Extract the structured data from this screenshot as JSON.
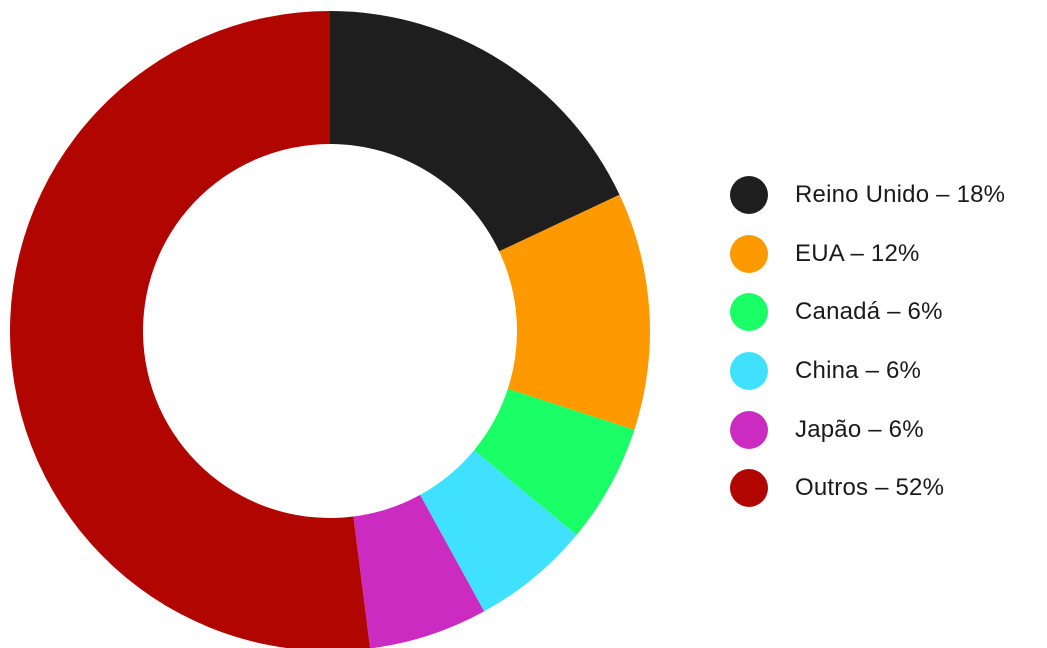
{
  "chart_data": {
    "type": "pie",
    "variant": "donut",
    "slices": [
      {
        "name": "Reino Unido",
        "value": 18,
        "color": "#1e1e1e",
        "label": "Reino Unido – 18%"
      },
      {
        "name": "EUA",
        "value": 12,
        "color": "#ff9900",
        "label": "EUA – 12%"
      },
      {
        "name": "Canadá",
        "value": 6,
        "color": "#1aff66",
        "label": "Canadá – 6%"
      },
      {
        "name": "China",
        "value": 6,
        "color": "#40e0ff",
        "label": "China – 6%"
      },
      {
        "name": "Japão",
        "value": 6,
        "color": "#cc2bc2",
        "label": "Japão – 6%"
      },
      {
        "name": "Outros",
        "value": 52,
        "color": "#b10500",
        "label": "Outros – 52%"
      }
    ],
    "legend_position": "right"
  }
}
